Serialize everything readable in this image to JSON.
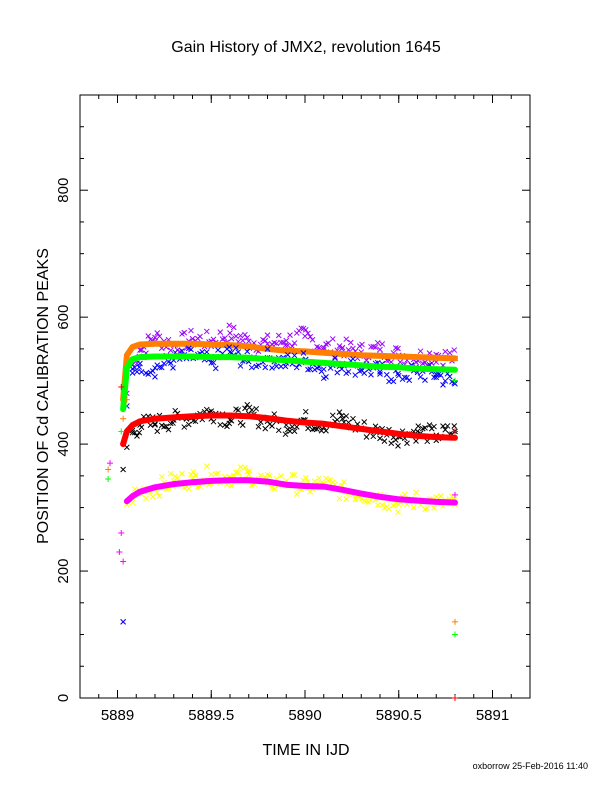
{
  "chart_data": {
    "type": "scatter",
    "title": "Gain History of JMX2, revolution 1645",
    "xlabel": "TIME IN IJD",
    "ylabel": "POSITION OF Cd CALIBRATION PEAKS",
    "footer": "oxborrow 25-Feb-2016 11:40",
    "xlim": [
      5888.8,
      5891.2
    ],
    "ylim": [
      0,
      950
    ],
    "x_ticks": [
      5889,
      5889.5,
      5890,
      5890.5,
      5891
    ],
    "x_tick_labels": [
      "5889",
      "5889.5",
      "5890",
      "5890.5",
      "5891"
    ],
    "y_ticks": [
      0,
      200,
      400,
      600,
      800
    ],
    "y_tick_labels": [
      "0",
      "200",
      "400",
      "600",
      "800"
    ],
    "grid": false,
    "series": [
      {
        "color": "#9900ff",
        "marker": "x",
        "fit_color": "#ff8000",
        "x": [
          5889.03,
          5889.05,
          5889.08,
          5889.12,
          5889.2,
          5889.3,
          5889.4,
          5889.5,
          5889.6,
          5889.7,
          5889.8,
          5889.9,
          5890.0,
          5890.1,
          5890.2,
          5890.3,
          5890.4,
          5890.5,
          5890.6,
          5890.7,
          5890.8
        ],
        "y": [
          120,
          480,
          525,
          548,
          568,
          556,
          566,
          562,
          575,
          562,
          558,
          563,
          570,
          552,
          552,
          545,
          549,
          540,
          537,
          541,
          535
        ],
        "fit": [
          470,
          540,
          553,
          557,
          558,
          558,
          558,
          557,
          556,
          554,
          550,
          547,
          546,
          544,
          542,
          540,
          539,
          538,
          537,
          536,
          535
        ]
      },
      {
        "color": "#0000ff",
        "marker": "x",
        "fit_color": "#00ff00",
        "x": [
          5889.03,
          5889.05,
          5889.08,
          5889.12,
          5889.2,
          5889.3,
          5889.4,
          5889.5,
          5889.6,
          5889.7,
          5889.8,
          5889.9,
          5890.0,
          5890.1,
          5890.2,
          5890.3,
          5890.4,
          5890.5,
          5890.6,
          5890.7,
          5890.8
        ],
        "y": [
          120,
          460,
          512,
          527,
          520,
          532,
          538,
          528,
          545,
          530,
          536,
          528,
          532,
          518,
          527,
          521,
          514,
          508,
          513,
          510,
          495
        ],
        "fit": [
          455,
          520,
          534,
          537,
          538,
          538,
          538,
          537,
          537,
          536,
          534,
          532,
          530,
          528,
          526,
          524,
          522,
          521,
          519,
          518,
          517
        ]
      },
      {
        "color": "#000000",
        "marker": "x",
        "fit_color": "#ff0000",
        "x": [
          5889.03,
          5889.05,
          5889.08,
          5889.12,
          5889.2,
          5889.3,
          5889.4,
          5889.5,
          5889.6,
          5889.7,
          5889.8,
          5889.9,
          5890.0,
          5890.1,
          5890.2,
          5890.3,
          5890.4,
          5890.5,
          5890.6,
          5890.7,
          5890.8
        ],
        "y": [
          360,
          395,
          418,
          430,
          432,
          438,
          442,
          452,
          438,
          448,
          436,
          430,
          438,
          432,
          440,
          425,
          418,
          412,
          420,
          414,
          420
        ],
        "fit": [
          400,
          420,
          430,
          436,
          440,
          442,
          444,
          445,
          445,
          444,
          441,
          437,
          434,
          432,
          428,
          424,
          420,
          416,
          413,
          411,
          410
        ]
      },
      {
        "color": "#ffff00",
        "marker": "x",
        "fit_color": "#ff00ff",
        "x": [
          5889.05,
          5889.08,
          5889.12,
          5889.2,
          5889.3,
          5889.4,
          5889.5,
          5889.6,
          5889.7,
          5889.8,
          5889.9,
          5890.0,
          5890.1,
          5890.2,
          5890.3,
          5890.4,
          5890.5,
          5890.6,
          5890.7,
          5890.8
        ],
        "y": [
          305,
          318,
          325,
          330,
          342,
          345,
          352,
          348,
          352,
          338,
          342,
          332,
          338,
          326,
          322,
          315,
          305,
          312,
          308,
          305
        ],
        "fit": [
          310,
          318,
          325,
          332,
          337,
          340,
          342,
          343,
          343,
          341,
          336,
          334,
          333,
          328,
          322,
          317,
          313,
          311,
          309,
          308
        ]
      }
    ],
    "scatter_plus_points": [
      {
        "x": 5888.95,
        "y": 360,
        "color": "#ff8000"
      },
      {
        "x": 5888.95,
        "y": 345,
        "color": "#00ff00"
      },
      {
        "x": 5888.96,
        "y": 370,
        "color": "#ff00ff"
      },
      {
        "x": 5889.01,
        "y": 230,
        "color": "#ff00ff"
      },
      {
        "x": 5889.02,
        "y": 260,
        "color": "#ff00ff"
      },
      {
        "x": 5889.03,
        "y": 215,
        "color": "#ff00ff"
      },
      {
        "x": 5889.02,
        "y": 420,
        "color": "#00ff00"
      },
      {
        "x": 5889.03,
        "y": 440,
        "color": "#ff8000"
      },
      {
        "x": 5889.02,
        "y": 490,
        "color": "#ff0000"
      },
      {
        "x": 5889.04,
        "y": 460,
        "color": "#00ff00"
      },
      {
        "x": 5889.05,
        "y": 470,
        "color": "#ff8000"
      },
      {
        "x": 5890.8,
        "y": 120,
        "color": "#ff8000"
      },
      {
        "x": 5890.8,
        "y": 100,
        "color": "#00ff00"
      },
      {
        "x": 5890.8,
        "y": 320,
        "color": "#ff00ff"
      },
      {
        "x": 5890.8,
        "y": 500,
        "color": "#00ff00"
      },
      {
        "x": 5890.8,
        "y": 420,
        "color": "#ff0000"
      },
      {
        "x": 5890.8,
        "y": 0,
        "color": "#ff0000"
      }
    ]
  }
}
